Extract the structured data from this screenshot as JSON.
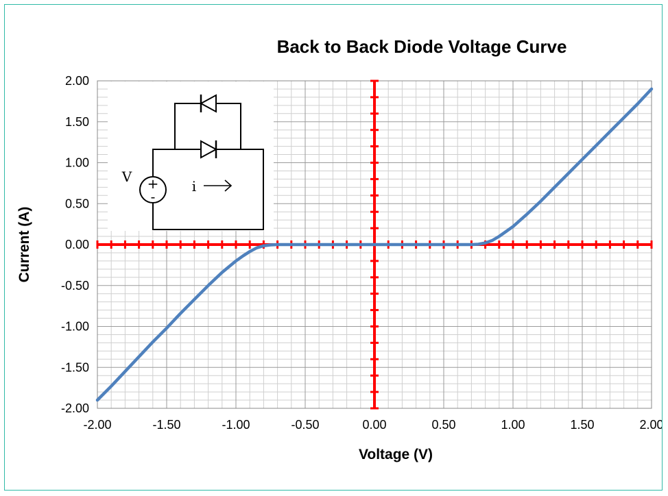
{
  "chart_data": {
    "type": "line",
    "title": "Back to Back Diode Voltage Curve",
    "xlabel": "Voltage (V)",
    "ylabel": "Current (A)",
    "xlim": [
      -2.0,
      2.0
    ],
    "ylim": [
      -2.0,
      2.0
    ],
    "x_ticks": [
      "-2.00",
      "-1.50",
      "-1.00",
      "-0.50",
      "0.00",
      "0.50",
      "1.00",
      "1.50",
      "2.00"
    ],
    "y_ticks": [
      "2.00",
      "1.50",
      "1.00",
      "0.50",
      "0.00",
      "-0.50",
      "-1.00",
      "-1.50",
      "-2.00"
    ],
    "grid": true,
    "legend": "none",
    "series": [
      {
        "color": "#4f81bd",
        "x": [
          -2.0,
          -1.9,
          -1.8,
          -1.7,
          -1.6,
          -1.5,
          -1.4,
          -1.3,
          -1.2,
          -1.1,
          -1.0,
          -0.95,
          -0.9,
          -0.85,
          -0.8,
          -0.75,
          -0.7,
          -0.6,
          -0.5,
          -0.4,
          -0.3,
          -0.2,
          -0.1,
          0.0,
          0.1,
          0.2,
          0.3,
          0.4,
          0.5,
          0.6,
          0.7,
          0.75,
          0.8,
          0.85,
          0.9,
          0.95,
          1.0,
          1.1,
          1.2,
          1.3,
          1.4,
          1.5,
          1.6,
          1.7,
          1.8,
          1.9,
          2.0
        ],
        "y": [
          -1.9,
          -1.73,
          -1.55,
          -1.37,
          -1.19,
          -1.02,
          -0.84,
          -0.67,
          -0.5,
          -0.34,
          -0.2,
          -0.14,
          -0.085,
          -0.04,
          -0.015,
          -0.004,
          0.0,
          0.0,
          0.0,
          0.0,
          0.0,
          0.0,
          0.0,
          0.0,
          0.0,
          0.0,
          0.0,
          0.0,
          0.0,
          0.0,
          0.0,
          0.004,
          0.02,
          0.05,
          0.1,
          0.16,
          0.22,
          0.37,
          0.53,
          0.7,
          0.87,
          1.04,
          1.21,
          1.38,
          1.55,
          1.72,
          1.9
        ]
      }
    ],
    "axis_highlight_color": "#ff0000"
  },
  "inset": {
    "source_label": "V",
    "plus_sign": "+",
    "minus_sign": "-",
    "current_label": "i"
  }
}
